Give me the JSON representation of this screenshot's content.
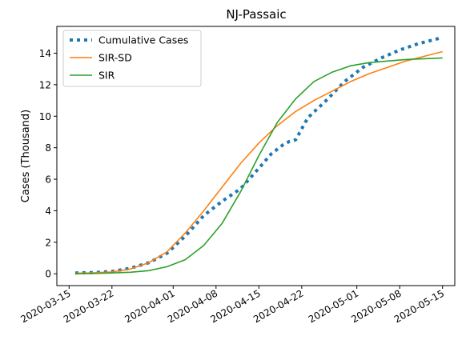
{
  "chart_data": {
    "type": "line",
    "title": "NJ-Passaic",
    "xlabel": "",
    "ylabel": "Cases (Thousand)",
    "x_range": [
      "2020-03-13",
      "2020-05-17"
    ],
    "ylim": [
      -0.75,
      15.7
    ],
    "grid": false,
    "legend_position": "top-left",
    "x_ticks": [
      "2020-03-15",
      "2020-03-22",
      "2020-04-01",
      "2020-04-08",
      "2020-04-15",
      "2020-04-22",
      "2020-05-01",
      "2020-05-08",
      "2020-05-15"
    ],
    "y_ticks": [
      0,
      2,
      4,
      6,
      8,
      10,
      12,
      14
    ],
    "series": [
      {
        "name": "Cumulative Cases",
        "color": "#1f77b4",
        "style": "dotted",
        "x": [
          "2020-03-16",
          "2020-03-19",
          "2020-03-22",
          "2020-03-25",
          "2020-03-28",
          "2020-03-31",
          "2020-04-03",
          "2020-04-06",
          "2020-04-09",
          "2020-04-12",
          "2020-04-15",
          "2020-04-17",
          "2020-04-19",
          "2020-04-20",
          "2020-04-21",
          "2020-04-23",
          "2020-04-26",
          "2020-04-29",
          "2020-05-02",
          "2020-05-05",
          "2020-05-08",
          "2020-05-11",
          "2020-05-15"
        ],
        "values": [
          0.05,
          0.08,
          0.15,
          0.35,
          0.7,
          1.3,
          2.4,
          3.7,
          4.6,
          5.4,
          6.7,
          7.6,
          8.2,
          8.4,
          8.5,
          9.9,
          11.0,
          12.2,
          13.1,
          13.7,
          14.2,
          14.6,
          15.0
        ]
      },
      {
        "name": "SIR-SD",
        "color": "#ff7f0e",
        "style": "solid",
        "x": [
          "2020-03-16",
          "2020-03-19",
          "2020-03-22",
          "2020-03-25",
          "2020-03-28",
          "2020-03-31",
          "2020-04-03",
          "2020-04-06",
          "2020-04-09",
          "2020-04-12",
          "2020-04-15",
          "2020-04-18",
          "2020-04-21",
          "2020-04-24",
          "2020-04-27",
          "2020-04-30",
          "2020-05-03",
          "2020-05-06",
          "2020-05-09",
          "2020-05-12",
          "2020-05-15"
        ],
        "values": [
          0.03,
          0.06,
          0.12,
          0.3,
          0.7,
          1.4,
          2.6,
          4.0,
          5.5,
          7.0,
          8.3,
          9.4,
          10.3,
          11.0,
          11.6,
          12.2,
          12.7,
          13.1,
          13.5,
          13.8,
          14.1
        ]
      },
      {
        "name": "SIR",
        "color": "#2ca02c",
        "style": "solid",
        "x": [
          "2020-03-16",
          "2020-03-19",
          "2020-03-22",
          "2020-03-25",
          "2020-03-28",
          "2020-03-31",
          "2020-04-03",
          "2020-04-06",
          "2020-04-09",
          "2020-04-12",
          "2020-04-15",
          "2020-04-18",
          "2020-04-21",
          "2020-04-24",
          "2020-04-27",
          "2020-04-30",
          "2020-05-03",
          "2020-05-06",
          "2020-05-09",
          "2020-05-12",
          "2020-05-15"
        ],
        "values": [
          0.0,
          0.02,
          0.05,
          0.1,
          0.2,
          0.45,
          0.9,
          1.8,
          3.2,
          5.2,
          7.5,
          9.6,
          11.1,
          12.2,
          12.8,
          13.2,
          13.4,
          13.5,
          13.6,
          13.65,
          13.7
        ]
      }
    ]
  }
}
